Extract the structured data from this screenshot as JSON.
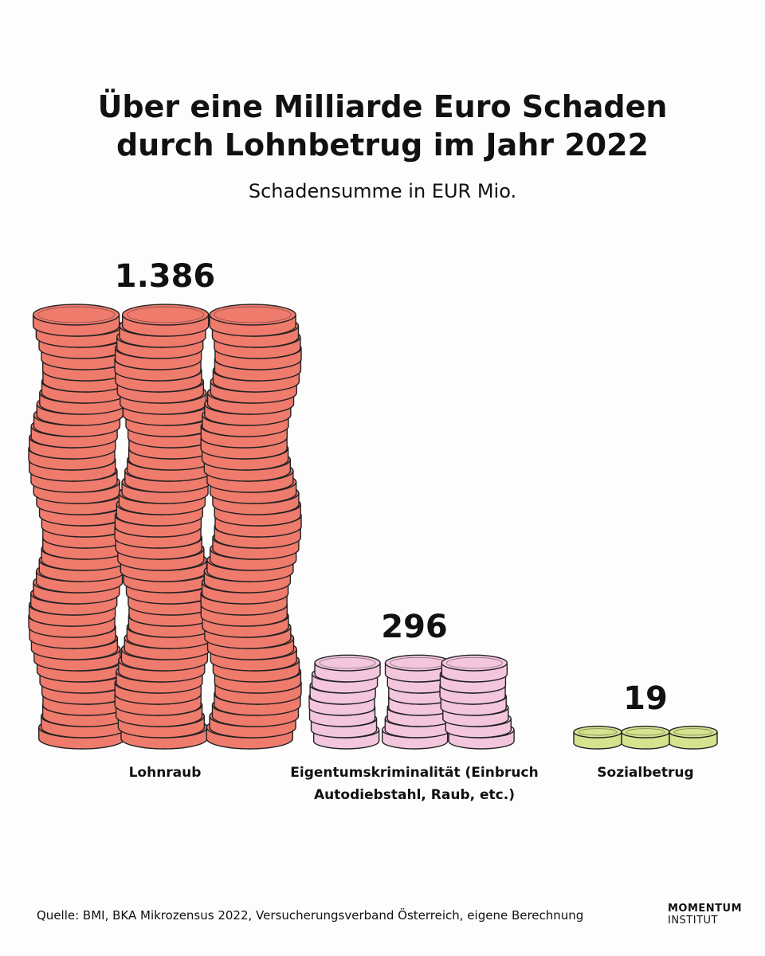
{
  "chart_data": {
    "type": "bar",
    "title": "Über eine Milliarde Euro Schaden durch Lohnbetrug im Jahr 2022",
    "subtitle": "Schadensumme in EUR Mio.",
    "categories": [
      "Lohnraub",
      "Eigentumskriminalität (Einbruch Autodiebstahl, Raub, etc.)",
      "Sozialbetrug"
    ],
    "values": [
      1386,
      296,
      19
    ],
    "value_labels": [
      "1.386",
      "296",
      "19"
    ],
    "colors": [
      "#ef7b6d",
      "#f3c6de",
      "#d6e38e"
    ],
    "source": "Quelle: BMI, BKA Mikrozensus 2022, Versucherungsverband Österreich, eigene Berechnung",
    "logo": [
      "MOMENTUM",
      "INSTITUT"
    ]
  }
}
